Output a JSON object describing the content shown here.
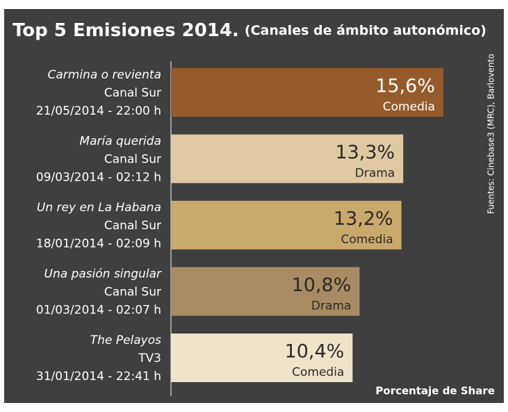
{
  "chart_data": {
    "type": "bar",
    "orientation": "horizontal",
    "title": "Top 5 Emisiones 2014.",
    "subtitle": "(Canales de ámbito autonómico)",
    "categories": [
      "Carmina o revienta",
      "María querida",
      "Un rey en La Habana",
      "Una pasión singular",
      "The Pelayos"
    ],
    "channels": [
      "Canal Sur",
      "Canal Sur",
      "Canal Sur",
      "Canal Sur",
      "TV3"
    ],
    "dates": [
      "21/05/2014 - 22:00 h",
      "09/03/2014 - 02:12 h",
      "18/01/2014 - 02:09 h",
      "01/03/2014 - 02:07 h",
      "31/01/2014 - 22:41 h"
    ],
    "genres": [
      "Comedia",
      "Drama",
      "Comedia",
      "Drama",
      "Comedia"
    ],
    "values": [
      15.6,
      13.3,
      13.2,
      10.8,
      10.4
    ],
    "value_labels": [
      "15,6%",
      "13,3%",
      "13,2%",
      "10,8%",
      "10,4%"
    ],
    "colors": [
      "#955b2b",
      "#dfc9a1",
      "#c9a96c",
      "#a98b63",
      "#efe3ca"
    ],
    "xlabel": "Porcentaje de Share",
    "source": "Fuentes: Cinebase3 (MRC), Barlovento"
  }
}
